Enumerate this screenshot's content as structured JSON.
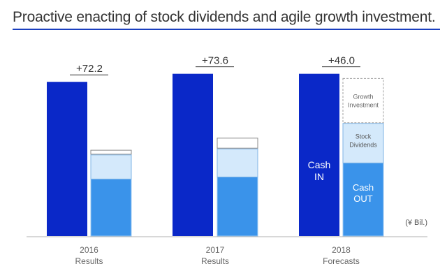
{
  "title": "Proactive enacting of stock dividends and agile growth investment.",
  "colors": {
    "cash_in": "#0a28c8",
    "cash_out": "#3a93ea",
    "stock_dividends": "#d4e9fb",
    "growth_investment": "#ffffff",
    "rule": "#1a3fbf"
  },
  "chart_data": {
    "type": "bar",
    "unit_label": "(¥ Bil.)",
    "categories": [
      {
        "year": "2016",
        "sub": "Results"
      },
      {
        "year": "2017",
        "sub": "Results"
      },
      {
        "year": "2018",
        "sub": "Forecasts"
      }
    ],
    "differences": [
      "+72.2",
      "+73.6",
      "+46.0"
    ],
    "series": [
      {
        "name": "Cash IN",
        "values": [
          230,
          242,
          242
        ]
      },
      {
        "name": "Cash OUT",
        "values": [
          85,
          88,
          109
        ]
      },
      {
        "name": "Stock Dividends",
        "values": [
          36,
          42,
          59
        ]
      },
      {
        "name": "Growth Investment",
        "values": [
          7,
          16,
          67
        ]
      }
    ],
    "labels": {
      "cash_in_line1": "Cash",
      "cash_in_line2": "IN",
      "cash_out_line1": "Cash",
      "cash_out_line2": "OUT",
      "stock_line1": "Stock",
      "stock_line2": "Dividends",
      "growth_line1": "Growth",
      "growth_line2": "Investment"
    }
  }
}
